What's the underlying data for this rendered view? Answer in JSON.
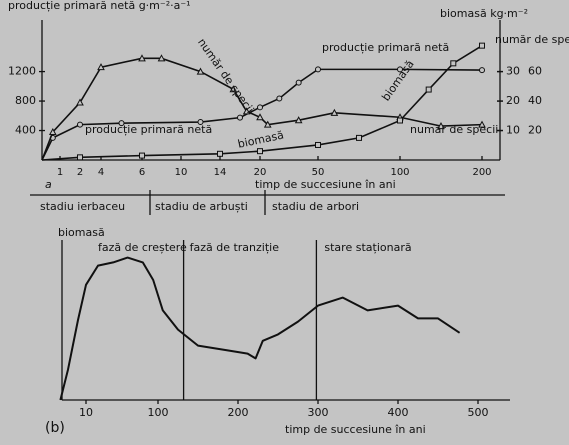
{
  "chart_data": [
    {
      "type": "line",
      "panel": "a",
      "y_label": "producție primară netă g·m⁻²·a⁻¹",
      "y2_label": "număr de specii",
      "y3_label": "biomasă kg·m⁻²",
      "x_label": "timp de succesiune în ani",
      "xlim": [
        0,
        200
      ],
      "xticks": [
        1,
        2,
        4,
        6,
        10,
        14,
        20,
        50,
        100,
        200
      ],
      "ylim": [
        0,
        1900
      ],
      "yticks": [
        400,
        800,
        1200
      ],
      "y2lim": [
        0,
        95
      ],
      "y2ticks": [
        20,
        40,
        60
      ],
      "y3lim": [
        0,
        47.5
      ],
      "y3ticks": [
        10,
        20,
        30
      ],
      "series": [
        {
          "name": "producție primară netă",
          "color": "#111111",
          "marker": "circle",
          "x": [
            0,
            0.6,
            2,
            5,
            12,
            17,
            20,
            30,
            40,
            50,
            100,
            200
          ],
          "values": [
            0,
            300,
            480,
            500,
            515,
            575,
            715,
            835,
            1050,
            1230,
            1230,
            1220
          ]
        },
        {
          "name": "număr de specii",
          "color": "#111111",
          "marker": "triangle",
          "axis": "y2",
          "x": [
            0,
            0.6,
            2,
            4,
            6,
            8,
            12,
            16,
            18,
            20,
            24,
            40,
            60,
            100,
            150,
            200
          ],
          "values": [
            0,
            19,
            39,
            63,
            69,
            69,
            60,
            48,
            33,
            29,
            24,
            27,
            32,
            29,
            23,
            24
          ]
        },
        {
          "name": "biomasă",
          "color": "#111111",
          "marker": "square",
          "axis": "y3",
          "x": [
            0,
            2,
            6,
            14,
            20,
            50,
            75,
            100,
            135,
            165,
            200
          ],
          "values": [
            0,
            0.9,
            1.5,
            2.1,
            3,
            5.1,
            7.5,
            13.4,
            23.9,
            32.8,
            38.8
          ]
        }
      ],
      "annotations": [
        "producție primară netă",
        "număr de specii",
        "producție primară netă",
        "biomasă",
        "biomasă",
        "număr de specii"
      ],
      "stages": [
        "stadiu ierbaceu",
        "stadiu de arbuști",
        "stadiu de arbori"
      ]
    },
    {
      "type": "line",
      "panel": "(b)",
      "y_label": "biomasă",
      "x_label": "timp de succesiune în ani",
      "xlim": [
        -20,
        540
      ],
      "xticks": [
        10,
        100,
        200,
        300,
        400,
        500
      ],
      "ylim": [
        0,
        100
      ],
      "x": [
        -22,
        -12.5,
        0,
        10,
        25,
        44,
        62,
        81,
        94,
        106,
        125,
        150,
        187,
        212,
        222,
        231,
        250,
        275,
        300,
        331,
        362,
        400,
        425,
        450,
        477
      ],
      "values": [
        0,
        19,
        50,
        72,
        84,
        86,
        89,
        86,
        75,
        56,
        44,
        34,
        31,
        29,
        26,
        37,
        41,
        49,
        59,
        64,
        56,
        59,
        51,
        51,
        42
      ],
      "color": "#111111",
      "phase_bounds": [
        132,
        298
      ],
      "phases": [
        "fază de creștere",
        "fază de tranziție",
        "stare staționară"
      ]
    }
  ]
}
